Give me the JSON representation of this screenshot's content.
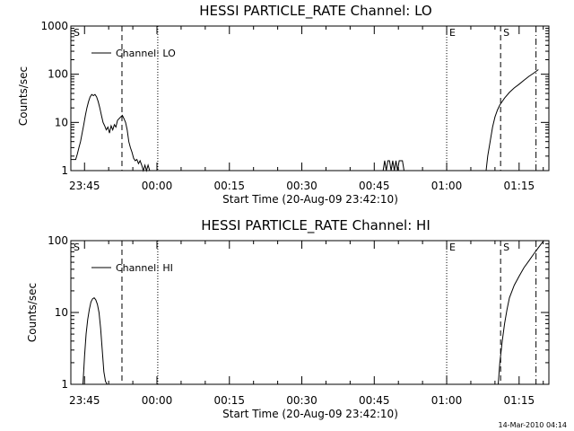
{
  "chart_data": [
    {
      "type": "line",
      "title": "HESSI PARTICLE_RATE Channel: LO",
      "xlabel": "Start Time (20-Aug-09 23:42:10)",
      "ylabel": "Counts/sec",
      "yscale": "log",
      "ylim": [
        1,
        1000
      ],
      "xlim": [
        "23:42:10",
        "01:21:10"
      ],
      "xticks": [
        "23:45",
        "00:00",
        "00:15",
        "00:30",
        "00:45",
        "01:00",
        "01:15"
      ],
      "yticks": [
        "1",
        "10",
        "100",
        "1000"
      ],
      "grid": false,
      "legend_position": "top-left",
      "legend_line_style": "solid",
      "series": [
        {
          "name": "Channel: LO",
          "time": [
            "23:42:10",
            "23:42:50",
            "23:43:10",
            "23:43:30",
            "23:43:50",
            "23:44:10",
            "23:44:30",
            "23:44:50",
            "23:45:10",
            "23:45:30",
            "23:45:50",
            "23:46:10",
            "23:46:30",
            "23:46:50",
            "23:47:10",
            "23:47:30",
            "23:47:50",
            "23:48:10",
            "23:48:30",
            "23:48:50",
            "23:49:10",
            "23:49:30",
            "23:49:50",
            "23:50:10",
            "23:50:30",
            "23:50:50",
            "23:51:10",
            "23:51:30",
            "23:51:50",
            "23:52:10",
            "23:52:30",
            "23:52:50",
            "23:53:10",
            "23:53:30",
            "23:53:50",
            "23:54:10",
            "23:54:30",
            "23:54:50",
            "23:55:10",
            "23:55:30",
            "23:55:50",
            "23:56:10",
            "23:56:30",
            "23:56:50",
            "23:57:10",
            "23:57:30",
            "23:57:50",
            "23:58:10",
            "23:58:30",
            "23:58:50",
            "23:59:10",
            "23:59:30",
            "23:59:50",
            "00:00:10",
            "00:00:30",
            "00:00:50",
            "00:01:10",
            "00:01:30",
            "00:01:50",
            "00:02:10"
          ],
          "values": [
            1.7,
            1.7,
            1.7,
            2.2,
            3,
            4,
            6,
            9,
            14,
            20,
            27,
            34,
            38,
            36,
            38,
            34,
            27,
            20,
            14,
            10,
            8.5,
            7,
            8,
            6,
            8.5,
            7,
            9,
            8,
            11,
            12,
            13,
            14,
            12,
            10,
            7,
            4,
            3,
            2.4,
            1.8,
            1.6,
            1.7,
            1.4,
            1.6,
            1.3,
            1.0,
            1.3,
            1.0,
            1.3,
            1.0,
            1.0,
            1.0,
            1.0,
            1.0,
            1.0,
            1.0,
            1.0,
            1.0,
            1.0,
            1.0,
            1.0
          ]
        },
        {
          "name": "",
          "time": [
            "00:46:50",
            "00:47:10",
            "00:47:30",
            "00:47:50",
            "00:48:10",
            "00:48:30",
            "00:48:50",
            "00:49:10",
            "00:49:30",
            "00:49:50",
            "00:50:10",
            "00:50:30",
            "00:50:50",
            "00:51:10"
          ],
          "values": [
            1.0,
            1.6,
            1.0,
            1.6,
            1.6,
            1.0,
            1.6,
            1.0,
            1.6,
            1.0,
            1.6,
            1.6,
            1.6,
            1.0
          ]
        },
        {
          "name": "",
          "time": [
            "01:08:10",
            "01:08:30",
            "01:09:00",
            "01:09:30",
            "01:10:00",
            "01:10:30",
            "01:11:00",
            "01:12:00",
            "01:13:00",
            "01:14:00",
            "01:15:00",
            "01:16:00",
            "01:17:00",
            "01:18:00",
            "01:19:00"
          ],
          "values": [
            1.0,
            2.0,
            4,
            8,
            13,
            18,
            23,
            32,
            42,
            52,
            62,
            75,
            90,
            105,
            125
          ]
        }
      ],
      "vertical_markers": [
        {
          "time": "23:42:10",
          "style": "dotted",
          "label": "S"
        },
        {
          "time": "23:52:45",
          "style": "dashed",
          "label": ""
        },
        {
          "time": "00:00:10",
          "style": "dotted",
          "label": ""
        },
        {
          "time": "01:00:00",
          "style": "dotted",
          "label": "E"
        },
        {
          "time": "01:11:10",
          "style": "dashed",
          "label": "S"
        },
        {
          "time": "01:18:30",
          "style": "dashdot",
          "label": ""
        }
      ]
    },
    {
      "type": "line",
      "title": "HESSI PARTICLE_RATE Channel: HI",
      "xlabel": "Start Time (20-Aug-09 23:42:10)",
      "ylabel": "Counts/sec",
      "yscale": "log",
      "ylim": [
        1,
        100
      ],
      "xlim": [
        "23:42:10",
        "01:21:10"
      ],
      "xticks": [
        "23:45",
        "00:00",
        "00:15",
        "00:30",
        "00:45",
        "01:00",
        "01:15"
      ],
      "yticks": [
        "1",
        "10",
        "100"
      ],
      "grid": false,
      "legend_position": "top-left",
      "legend_line_style": "solid",
      "series": [
        {
          "name": "Channel: HI",
          "time": [
            "23:44:40",
            "23:45:00",
            "23:45:20",
            "23:45:40",
            "23:46:00",
            "23:46:20",
            "23:46:40",
            "23:47:00",
            "23:47:20",
            "23:47:40",
            "23:48:00",
            "23:48:20",
            "23:48:40",
            "23:49:00",
            "23:49:20",
            "23:49:40"
          ],
          "values": [
            1.0,
            2.5,
            5,
            8,
            11,
            14,
            15.5,
            16,
            15,
            13,
            10,
            6,
            3,
            1.5,
            1.1,
            1.0
          ]
        },
        {
          "name": "",
          "time": [
            "01:10:40",
            "01:11:00",
            "01:11:30",
            "01:12:00",
            "01:12:30",
            "01:13:00",
            "01:14:00",
            "01:15:00",
            "01:16:00",
            "01:17:00",
            "01:18:00",
            "01:19:00",
            "01:20:00"
          ],
          "values": [
            1.0,
            2,
            4,
            7,
            11,
            16,
            24,
            32,
            42,
            52,
            65,
            80,
            98
          ]
        }
      ],
      "vertical_markers": [
        {
          "time": "23:42:10",
          "style": "dotted",
          "label": "S"
        },
        {
          "time": "23:52:45",
          "style": "dashed",
          "label": ""
        },
        {
          "time": "00:00:10",
          "style": "dotted",
          "label": ""
        },
        {
          "time": "01:00:00",
          "style": "dotted",
          "label": "E"
        },
        {
          "time": "01:11:10",
          "style": "dashed",
          "label": "S"
        },
        {
          "time": "01:18:30",
          "style": "dashdot",
          "label": ""
        }
      ]
    }
  ],
  "footer": "14-Mar-2010 04:14"
}
